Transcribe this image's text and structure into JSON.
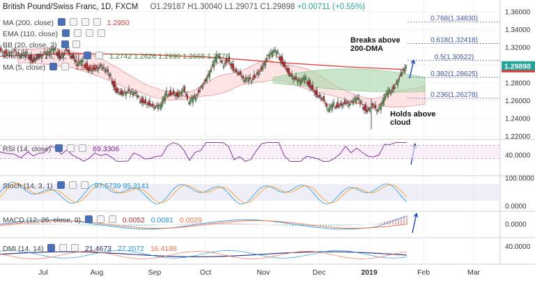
{
  "header": {
    "symbol": "British Pound/Swiss Franc, 1D, FXCM",
    "ohlc": "O1.29187  H1.30040  L1.29071  C1.29898",
    "change": "+0.00711 (+0.55%)"
  },
  "indicators": {
    "ma200": {
      "label": "MA (200, close)",
      "value": "1.2950"
    },
    "ema110": {
      "label": "EMA (110, close)",
      "value": ""
    },
    "bb": {
      "label": "BB (20, close, 2)",
      "values": "1.2742  1.2626  1.2990  1.2668  1.2776"
    },
    "ichimoku": {
      "label": "Ichimoku (9, 26, 52, 26)",
      "value": ""
    },
    "ma5": {
      "label": "MA (5, close)",
      "value": "1.2977"
    }
  },
  "colors": {
    "up": "#26a69a",
    "down": "#ef5350",
    "candle_body_up": "#4caf50",
    "candle_body_down": "#c62828",
    "ma200": "#e53935",
    "ichimoku_green": "#a5d6a7",
    "ichimoku_red": "#ffcdd2",
    "fib": "#3f51b5",
    "rsi": "#7b1fa2",
    "stoch_k": "#2196f3",
    "stoch_d": "#ff9800",
    "macd": "#2196f3",
    "signal": "#ff7043",
    "dmi_plus": "#2196f3",
    "dmi_minus": "#ff7043",
    "adx": "#1a237e",
    "arrow": "#1e40c8",
    "price_tag": "#26a69a"
  },
  "annotations": {
    "breaks": [
      "Breaks above",
      "200-DMA"
    ],
    "holds": [
      "Holds above",
      "cloud"
    ]
  },
  "chart_data": {
    "type": "candlestick",
    "title": "British Pound/Swiss Franc, 1D, FXCM",
    "x_axis": {
      "ticks": [
        "Jul",
        "Aug",
        "Sep",
        "Oct",
        "Nov",
        "Dec",
        "2019",
        "Feb",
        "Mar"
      ]
    },
    "y_axis": {
      "ticks": [
        "1.36000",
        "1.34000",
        "1.32000",
        "1.30000",
        "1.28000",
        "1.26000",
        "1.24000",
        "1.22000"
      ],
      "ylim": [
        1.215,
        1.37
      ]
    },
    "last_price": "1.29898",
    "ma200_value": "1.2950",
    "close_path": [
      {
        "x": 0,
        "y": 1.318
      },
      {
        "x": 10,
        "y": 1.313
      },
      {
        "x": 20,
        "y": 1.315
      },
      {
        "x": 30,
        "y": 1.31
      },
      {
        "x": 40,
        "y": 1.312
      },
      {
        "x": 48,
        "y": 1.306
      },
      {
        "x": 55,
        "y": 1.309
      },
      {
        "x": 63,
        "y": 1.312
      },
      {
        "x": 72,
        "y": 1.314
      },
      {
        "x": 80,
        "y": 1.316
      },
      {
        "x": 88,
        "y": 1.31
      },
      {
        "x": 96,
        "y": 1.318
      },
      {
        "x": 104,
        "y": 1.308
      },
      {
        "x": 112,
        "y": 1.3
      },
      {
        "x": 120,
        "y": 1.303
      },
      {
        "x": 128,
        "y": 1.296
      },
      {
        "x": 136,
        "y": 1.296
      },
      {
        "x": 144,
        "y": 1.298
      },
      {
        "x": 152,
        "y": 1.294
      },
      {
        "x": 160,
        "y": 1.285
      },
      {
        "x": 168,
        "y": 1.272
      },
      {
        "x": 176,
        "y": 1.268
      },
      {
        "x": 184,
        "y": 1.27
      },
      {
        "x": 192,
        "y": 1.268
      },
      {
        "x": 200,
        "y": 1.262
      },
      {
        "x": 208,
        "y": 1.26
      },
      {
        "x": 216,
        "y": 1.256
      },
      {
        "x": 224,
        "y": 1.252
      },
      {
        "x": 232,
        "y": 1.254
      },
      {
        "x": 240,
        "y": 1.268
      },
      {
        "x": 248,
        "y": 1.27
      },
      {
        "x": 256,
        "y": 1.266
      },
      {
        "x": 264,
        "y": 1.273
      },
      {
        "x": 272,
        "y": 1.256
      },
      {
        "x": 280,
        "y": 1.263
      },
      {
        "x": 288,
        "y": 1.275
      },
      {
        "x": 296,
        "y": 1.283
      },
      {
        "x": 304,
        "y": 1.296
      },
      {
        "x": 312,
        "y": 1.31
      },
      {
        "x": 320,
        "y": 1.3
      },
      {
        "x": 328,
        "y": 1.308
      },
      {
        "x": 336,
        "y": 1.295
      },
      {
        "x": 344,
        "y": 1.29
      },
      {
        "x": 352,
        "y": 1.282
      },
      {
        "x": 360,
        "y": 1.283
      },
      {
        "x": 368,
        "y": 1.29
      },
      {
        "x": 376,
        "y": 1.296
      },
      {
        "x": 384,
        "y": 1.308
      },
      {
        "x": 392,
        "y": 1.314
      },
      {
        "x": 400,
        "y": 1.312
      },
      {
        "x": 408,
        "y": 1.302
      },
      {
        "x": 416,
        "y": 1.29
      },
      {
        "x": 424,
        "y": 1.284
      },
      {
        "x": 432,
        "y": 1.28
      },
      {
        "x": 440,
        "y": 1.284
      },
      {
        "x": 448,
        "y": 1.276
      },
      {
        "x": 456,
        "y": 1.266
      },
      {
        "x": 464,
        "y": 1.262
      },
      {
        "x": 472,
        "y": 1.248
      },
      {
        "x": 480,
        "y": 1.255
      },
      {
        "x": 488,
        "y": 1.256
      },
      {
        "x": 496,
        "y": 1.258
      },
      {
        "x": 504,
        "y": 1.256
      },
      {
        "x": 512,
        "y": 1.262
      },
      {
        "x": 520,
        "y": 1.255
      },
      {
        "x": 528,
        "y": 1.25
      },
      {
        "x": 536,
        "y": 1.255
      },
      {
        "x": 544,
        "y": 1.248
      },
      {
        "x": 552,
        "y": 1.262
      },
      {
        "x": 560,
        "y": 1.27
      },
      {
        "x": 568,
        "y": 1.278
      },
      {
        "x": 576,
        "y": 1.29
      },
      {
        "x": 584,
        "y": 1.299
      }
    ],
    "fib_levels": [
      {
        "ratio": "0.768",
        "price": "1.34830",
        "label": "0.768(1.34830)"
      },
      {
        "ratio": "0.618",
        "price": "1.32418",
        "label": "0.618(1.32418)"
      },
      {
        "ratio": "0.5",
        "price": "1.30522",
        "label": "0.5(1.30522)"
      },
      {
        "ratio": "0.382",
        "price": "1.28625",
        "label": "0.382(1.28625)"
      },
      {
        "ratio": "0.236",
        "price": "1.26278",
        "label": "0.236(1.26278)"
      }
    ],
    "panes": {
      "rsi": {
        "label": "RSI (14, close)",
        "value": "69.3306",
        "ticks": [
          "40.0000"
        ]
      },
      "stoch": {
        "label": "Stoch (14, 3, 1)",
        "values": "97.5739  95.3141",
        "ticks": [
          "100.0000",
          "0.0000"
        ]
      },
      "macd": {
        "label": "MACD (12, 26, close, 9)",
        "values": [
          "0.0052",
          "0.0081",
          "0.0029"
        ],
        "ticks": [
          "0.0000"
        ]
      },
      "dmi": {
        "label": "DMI (14, 14)",
        "values": [
          "21.4673",
          "27.2072",
          "16.4188"
        ],
        "ticks": [
          "40.0000"
        ]
      }
    }
  }
}
